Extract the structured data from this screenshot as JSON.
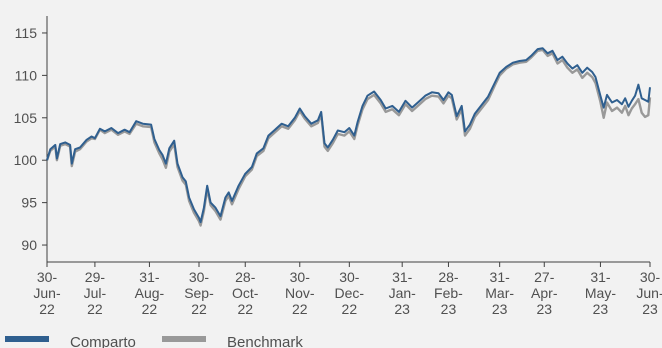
{
  "chart_data": {
    "type": "line",
    "title": "",
    "xlabel": "",
    "ylabel": "",
    "ylim": [
      88,
      117
    ],
    "yticks": [
      90,
      95,
      100,
      105,
      110,
      115
    ],
    "grid": false,
    "legend_position": "bottom",
    "x_start": "2022-06-30",
    "x_end": "2023-06-30",
    "xticks": [
      {
        "date": "2022-06-30",
        "label": [
          "30-",
          "Jun-",
          "22"
        ]
      },
      {
        "date": "2022-07-29",
        "label": [
          "29-",
          "Jul-",
          "22"
        ]
      },
      {
        "date": "2022-08-31",
        "label": [
          "31-",
          "Aug-",
          "22"
        ]
      },
      {
        "date": "2022-09-30",
        "label": [
          "30-",
          "Sep-",
          "22"
        ]
      },
      {
        "date": "2022-10-28",
        "label": [
          "28-",
          "Oct-",
          "22"
        ]
      },
      {
        "date": "2022-11-30",
        "label": [
          "30-",
          "Nov-",
          "22"
        ]
      },
      {
        "date": "2022-12-30",
        "label": [
          "30-",
          "Dec-",
          "22"
        ]
      },
      {
        "date": "2023-01-31",
        "label": [
          "31-",
          "Jan-",
          "23"
        ]
      },
      {
        "date": "2023-02-28",
        "label": [
          "28-",
          "Feb-",
          "23"
        ]
      },
      {
        "date": "2023-03-31",
        "label": [
          "31-",
          "Mar-",
          "23"
        ]
      },
      {
        "date": "2023-04-27",
        "label": [
          "27-",
          "Apr-",
          "23"
        ]
      },
      {
        "date": "2023-05-31",
        "label": [
          "31-",
          "May-",
          "23"
        ]
      },
      {
        "date": "2023-06-30",
        "label": [
          "30-",
          "Jun-",
          "23"
        ]
      }
    ],
    "series": [
      {
        "name": "Comparto",
        "color": "#2f5f8f",
        "points": [
          [
            "2022-06-30",
            100.0
          ],
          [
            "2022-07-02",
            101.3
          ],
          [
            "2022-07-05",
            101.8
          ],
          [
            "2022-07-06",
            100.2
          ],
          [
            "2022-07-08",
            101.9
          ],
          [
            "2022-07-11",
            102.1
          ],
          [
            "2022-07-14",
            101.8
          ],
          [
            "2022-07-15",
            99.6
          ],
          [
            "2022-07-17",
            101.3
          ],
          [
            "2022-07-20",
            101.5
          ],
          [
            "2022-07-24",
            102.4
          ],
          [
            "2022-07-27",
            102.8
          ],
          [
            "2022-07-29",
            102.6
          ],
          [
            "2022-08-01",
            103.7
          ],
          [
            "2022-08-04",
            103.4
          ],
          [
            "2022-08-08",
            103.8
          ],
          [
            "2022-08-12",
            103.2
          ],
          [
            "2022-08-16",
            103.6
          ],
          [
            "2022-08-19",
            103.3
          ],
          [
            "2022-08-23",
            104.6
          ],
          [
            "2022-08-27",
            104.3
          ],
          [
            "2022-09-01",
            104.2
          ],
          [
            "2022-09-03",
            102.5
          ],
          [
            "2022-09-06",
            101.2
          ],
          [
            "2022-09-08",
            100.6
          ],
          [
            "2022-09-10",
            99.6
          ],
          [
            "2022-09-12",
            101.4
          ],
          [
            "2022-09-15",
            102.3
          ],
          [
            "2022-09-17",
            99.6
          ],
          [
            "2022-09-20",
            98.0
          ],
          [
            "2022-09-22",
            97.5
          ],
          [
            "2022-09-24",
            95.6
          ],
          [
            "2022-09-27",
            94.2
          ],
          [
            "2022-09-30",
            93.2
          ],
          [
            "2022-10-01",
            92.7
          ],
          [
            "2022-10-03",
            94.4
          ],
          [
            "2022-10-05",
            97.0
          ],
          [
            "2022-10-07",
            95.0
          ],
          [
            "2022-10-10",
            94.4
          ],
          [
            "2022-10-13",
            93.4
          ],
          [
            "2022-10-16",
            95.6
          ],
          [
            "2022-10-18",
            96.2
          ],
          [
            "2022-10-20",
            95.2
          ],
          [
            "2022-10-24",
            97.0
          ],
          [
            "2022-10-28",
            98.4
          ],
          [
            "2022-11-01",
            99.2
          ],
          [
            "2022-11-04",
            100.8
          ],
          [
            "2022-11-08",
            101.4
          ],
          [
            "2022-11-11",
            102.9
          ],
          [
            "2022-11-15",
            103.6
          ],
          [
            "2022-11-19",
            104.3
          ],
          [
            "2022-11-23",
            104.0
          ],
          [
            "2022-11-27",
            105.0
          ],
          [
            "2022-11-30",
            106.1
          ],
          [
            "2022-12-03",
            105.2
          ],
          [
            "2022-12-07",
            104.3
          ],
          [
            "2022-12-11",
            104.7
          ],
          [
            "2022-12-13",
            105.7
          ],
          [
            "2022-12-15",
            102.0
          ],
          [
            "2022-12-17",
            101.5
          ],
          [
            "2022-12-20",
            102.4
          ],
          [
            "2022-12-23",
            103.5
          ],
          [
            "2022-12-27",
            103.3
          ],
          [
            "2022-12-30",
            103.8
          ],
          [
            "2023-01-02",
            102.9
          ],
          [
            "2023-01-04",
            104.5
          ],
          [
            "2023-01-07",
            106.4
          ],
          [
            "2023-01-10",
            107.6
          ],
          [
            "2023-01-14",
            108.1
          ],
          [
            "2023-01-18",
            107.1
          ],
          [
            "2023-01-21",
            106.1
          ],
          [
            "2023-01-25",
            106.4
          ],
          [
            "2023-01-29",
            105.7
          ],
          [
            "2023-02-02",
            107.0
          ],
          [
            "2023-02-06",
            106.2
          ],
          [
            "2023-02-10",
            106.9
          ],
          [
            "2023-02-14",
            107.6
          ],
          [
            "2023-02-18",
            108.0
          ],
          [
            "2023-02-22",
            107.9
          ],
          [
            "2023-02-25",
            107.1
          ],
          [
            "2023-02-28",
            108.0
          ],
          [
            "2023-03-02",
            107.7
          ],
          [
            "2023-03-05",
            105.2
          ],
          [
            "2023-03-08",
            106.4
          ],
          [
            "2023-03-10",
            103.4
          ],
          [
            "2023-03-13",
            104.2
          ],
          [
            "2023-03-16",
            105.5
          ],
          [
            "2023-03-20",
            106.5
          ],
          [
            "2023-03-24",
            107.5
          ],
          [
            "2023-03-28",
            109.1
          ],
          [
            "2023-03-31",
            110.3
          ],
          [
            "2023-04-04",
            111.0
          ],
          [
            "2023-04-08",
            111.5
          ],
          [
            "2023-04-12",
            111.7
          ],
          [
            "2023-04-16",
            111.8
          ],
          [
            "2023-04-19",
            112.3
          ],
          [
            "2023-04-23",
            113.1
          ],
          [
            "2023-04-26",
            113.2
          ],
          [
            "2023-04-29",
            112.6
          ],
          [
            "2023-05-02",
            112.9
          ],
          [
            "2023-05-05",
            111.8
          ],
          [
            "2023-05-08",
            112.2
          ],
          [
            "2023-05-11",
            111.4
          ],
          [
            "2023-05-14",
            110.8
          ],
          [
            "2023-05-17",
            111.2
          ],
          [
            "2023-05-20",
            110.3
          ],
          [
            "2023-05-23",
            110.9
          ],
          [
            "2023-05-26",
            110.4
          ],
          [
            "2023-05-28",
            109.8
          ],
          [
            "2023-05-31",
            107.6
          ],
          [
            "2023-06-02",
            106.2
          ],
          [
            "2023-06-04",
            107.7
          ],
          [
            "2023-06-07",
            106.8
          ],
          [
            "2023-06-10",
            107.1
          ],
          [
            "2023-06-13",
            106.6
          ],
          [
            "2023-06-15",
            107.3
          ],
          [
            "2023-06-17",
            106.3
          ],
          [
            "2023-06-19",
            107.0
          ],
          [
            "2023-06-21",
            107.6
          ],
          [
            "2023-06-23",
            108.9
          ],
          [
            "2023-06-25",
            107.3
          ],
          [
            "2023-06-27",
            107.1
          ],
          [
            "2023-06-29",
            106.9
          ],
          [
            "2023-06-30",
            108.6
          ]
        ]
      },
      {
        "name": "Benchmark",
        "color": "#999999",
        "points": [
          [
            "2022-06-30",
            100.0
          ],
          [
            "2022-07-02",
            101.1
          ],
          [
            "2022-07-05",
            101.6
          ],
          [
            "2022-07-06",
            100.0
          ],
          [
            "2022-07-08",
            101.7
          ],
          [
            "2022-07-11",
            101.9
          ],
          [
            "2022-07-14",
            101.6
          ],
          [
            "2022-07-15",
            99.3
          ],
          [
            "2022-07-17",
            101.0
          ],
          [
            "2022-07-20",
            101.3
          ],
          [
            "2022-07-24",
            102.2
          ],
          [
            "2022-07-27",
            102.6
          ],
          [
            "2022-07-29",
            102.5
          ],
          [
            "2022-08-01",
            103.6
          ],
          [
            "2022-08-04",
            103.2
          ],
          [
            "2022-08-08",
            103.6
          ],
          [
            "2022-08-12",
            103.0
          ],
          [
            "2022-08-16",
            103.4
          ],
          [
            "2022-08-19",
            103.1
          ],
          [
            "2022-08-23",
            104.3
          ],
          [
            "2022-08-27",
            104.0
          ],
          [
            "2022-09-01",
            103.9
          ],
          [
            "2022-09-03",
            102.1
          ],
          [
            "2022-09-06",
            100.8
          ],
          [
            "2022-09-08",
            100.1
          ],
          [
            "2022-09-10",
            99.1
          ],
          [
            "2022-09-12",
            101.0
          ],
          [
            "2022-09-15",
            101.9
          ],
          [
            "2022-09-17",
            99.2
          ],
          [
            "2022-09-20",
            97.6
          ],
          [
            "2022-09-22",
            97.1
          ],
          [
            "2022-09-24",
            95.2
          ],
          [
            "2022-09-27",
            93.8
          ],
          [
            "2022-09-30",
            92.8
          ],
          [
            "2022-10-01",
            92.3
          ],
          [
            "2022-10-03",
            94.0
          ],
          [
            "2022-10-05",
            96.6
          ],
          [
            "2022-10-07",
            94.7
          ],
          [
            "2022-10-10",
            94.0
          ],
          [
            "2022-10-13",
            93.0
          ],
          [
            "2022-10-16",
            95.2
          ],
          [
            "2022-10-18",
            95.8
          ],
          [
            "2022-10-20",
            94.8
          ],
          [
            "2022-10-24",
            96.6
          ],
          [
            "2022-10-28",
            98.1
          ],
          [
            "2022-11-01",
            98.9
          ],
          [
            "2022-11-04",
            100.5
          ],
          [
            "2022-11-08",
            101.1
          ],
          [
            "2022-11-11",
            102.6
          ],
          [
            "2022-11-15",
            103.3
          ],
          [
            "2022-11-19",
            104.0
          ],
          [
            "2022-11-23",
            103.7
          ],
          [
            "2022-11-27",
            104.7
          ],
          [
            "2022-11-30",
            105.8
          ],
          [
            "2022-12-03",
            104.9
          ],
          [
            "2022-12-07",
            104.0
          ],
          [
            "2022-12-11",
            104.4
          ],
          [
            "2022-12-13",
            105.4
          ],
          [
            "2022-12-15",
            101.6
          ],
          [
            "2022-12-17",
            101.1
          ],
          [
            "2022-12-20",
            102.0
          ],
          [
            "2022-12-23",
            103.1
          ],
          [
            "2022-12-27",
            102.9
          ],
          [
            "2022-12-30",
            103.4
          ],
          [
            "2023-01-02",
            102.5
          ],
          [
            "2023-01-04",
            104.1
          ],
          [
            "2023-01-07",
            106.0
          ],
          [
            "2023-01-10",
            107.2
          ],
          [
            "2023-01-14",
            107.7
          ],
          [
            "2023-01-18",
            106.7
          ],
          [
            "2023-01-21",
            105.7
          ],
          [
            "2023-01-25",
            106.0
          ],
          [
            "2023-01-29",
            105.3
          ],
          [
            "2023-02-02",
            106.6
          ],
          [
            "2023-02-06",
            105.8
          ],
          [
            "2023-02-10",
            106.5
          ],
          [
            "2023-02-14",
            107.2
          ],
          [
            "2023-02-18",
            107.6
          ],
          [
            "2023-02-22",
            107.5
          ],
          [
            "2023-02-25",
            106.7
          ],
          [
            "2023-02-28",
            107.6
          ],
          [
            "2023-03-02",
            107.3
          ],
          [
            "2023-03-05",
            104.8
          ],
          [
            "2023-03-08",
            106.0
          ],
          [
            "2023-03-10",
            102.9
          ],
          [
            "2023-03-13",
            103.7
          ],
          [
            "2023-03-16",
            105.1
          ],
          [
            "2023-03-20",
            106.1
          ],
          [
            "2023-03-24",
            107.1
          ],
          [
            "2023-03-28",
            108.8
          ],
          [
            "2023-03-31",
            110.0
          ],
          [
            "2023-04-04",
            110.8
          ],
          [
            "2023-04-08",
            111.3
          ],
          [
            "2023-04-12",
            111.5
          ],
          [
            "2023-04-16",
            111.6
          ],
          [
            "2023-04-19",
            112.1
          ],
          [
            "2023-04-23",
            112.9
          ],
          [
            "2023-04-26",
            113.0
          ],
          [
            "2023-04-29",
            112.3
          ],
          [
            "2023-05-02",
            112.6
          ],
          [
            "2023-05-05",
            111.4
          ],
          [
            "2023-05-08",
            111.8
          ],
          [
            "2023-05-11",
            110.9
          ],
          [
            "2023-05-14",
            110.3
          ],
          [
            "2023-05-17",
            110.7
          ],
          [
            "2023-05-20",
            109.7
          ],
          [
            "2023-05-23",
            110.3
          ],
          [
            "2023-05-26",
            109.8
          ],
          [
            "2023-05-28",
            109.1
          ],
          [
            "2023-05-31",
            106.9
          ],
          [
            "2023-06-02",
            105.0
          ],
          [
            "2023-06-04",
            106.8
          ],
          [
            "2023-06-07",
            105.8
          ],
          [
            "2023-06-10",
            106.2
          ],
          [
            "2023-06-13",
            105.6
          ],
          [
            "2023-06-15",
            106.4
          ],
          [
            "2023-06-17",
            105.3
          ],
          [
            "2023-06-19",
            106.1
          ],
          [
            "2023-06-21",
            106.6
          ],
          [
            "2023-06-23",
            107.2
          ],
          [
            "2023-06-25",
            105.6
          ],
          [
            "2023-06-27",
            105.1
          ],
          [
            "2023-06-29",
            105.3
          ],
          [
            "2023-06-30",
            107.4
          ]
        ]
      }
    ]
  }
}
